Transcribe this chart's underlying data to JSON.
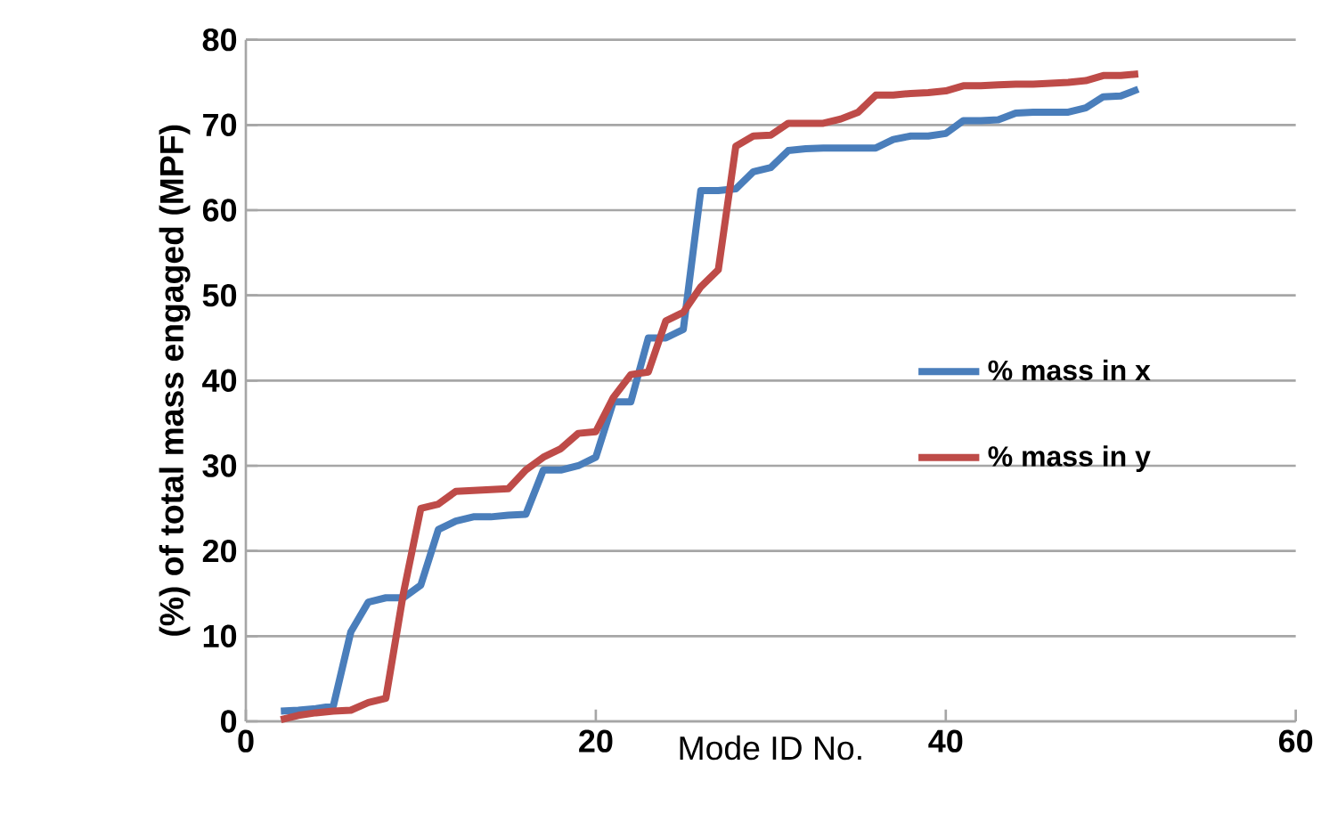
{
  "chart_data": {
    "type": "line",
    "xlabel": "Mode ID No.",
    "ylabel": "(%) of total mass engaged (MPF)",
    "x": [
      2,
      3,
      4,
      5,
      6,
      7,
      8,
      9,
      10,
      11,
      12,
      13,
      14,
      15,
      16,
      17,
      18,
      19,
      20,
      21,
      22,
      23,
      24,
      25,
      26,
      27,
      28,
      29,
      30,
      31,
      32,
      33,
      34,
      35,
      36,
      37,
      38,
      39,
      40,
      41,
      42,
      43,
      44,
      45,
      46,
      47,
      48,
      49,
      50,
      51
    ],
    "series": [
      {
        "name": "% mass in x",
        "color": "#4a7ebb",
        "values": [
          1.2,
          1.3,
          1.5,
          1.8,
          10.5,
          14,
          14.5,
          14.5,
          16,
          22.5,
          23.5,
          24,
          24,
          24.2,
          24.3,
          29.5,
          29.5,
          30,
          31,
          37.5,
          37.5,
          45,
          45,
          46,
          62.3,
          62.3,
          62.5,
          64.5,
          65,
          67,
          67.2,
          67.3,
          67.3,
          67.3,
          67.3,
          68.3,
          68.7,
          68.7,
          69,
          70.5,
          70.5,
          70.6,
          71.4,
          71.5,
          71.5,
          71.5,
          72,
          73.3,
          73.4,
          74.2
        ]
      },
      {
        "name": "% mass in y",
        "color": "#be4b48",
        "values": [
          0.2,
          0.7,
          1,
          1.2,
          1.3,
          2.2,
          2.7,
          15,
          25,
          25.5,
          27,
          27.1,
          27.2,
          27.3,
          29.5,
          31,
          32,
          33.8,
          34,
          38,
          40.7,
          41,
          47,
          48,
          51,
          53,
          67.5,
          68.7,
          68.8,
          70.2,
          70.2,
          70.2,
          70.7,
          71.5,
          73.5,
          73.5,
          73.7,
          73.8,
          74,
          74.6,
          74.6,
          74.7,
          74.8,
          74.8,
          74.9,
          75,
          75.2,
          75.8,
          75.8,
          76
        ]
      }
    ],
    "xlim": [
      0,
      60
    ],
    "xticks": [
      0,
      20,
      40,
      60
    ],
    "ylim": [
      0,
      80
    ],
    "yticks": [
      0,
      10,
      20,
      30,
      40,
      50,
      60,
      70,
      80
    ],
    "grid": "y",
    "legend": "right",
    "marker": "none",
    "line_style": "solid"
  }
}
